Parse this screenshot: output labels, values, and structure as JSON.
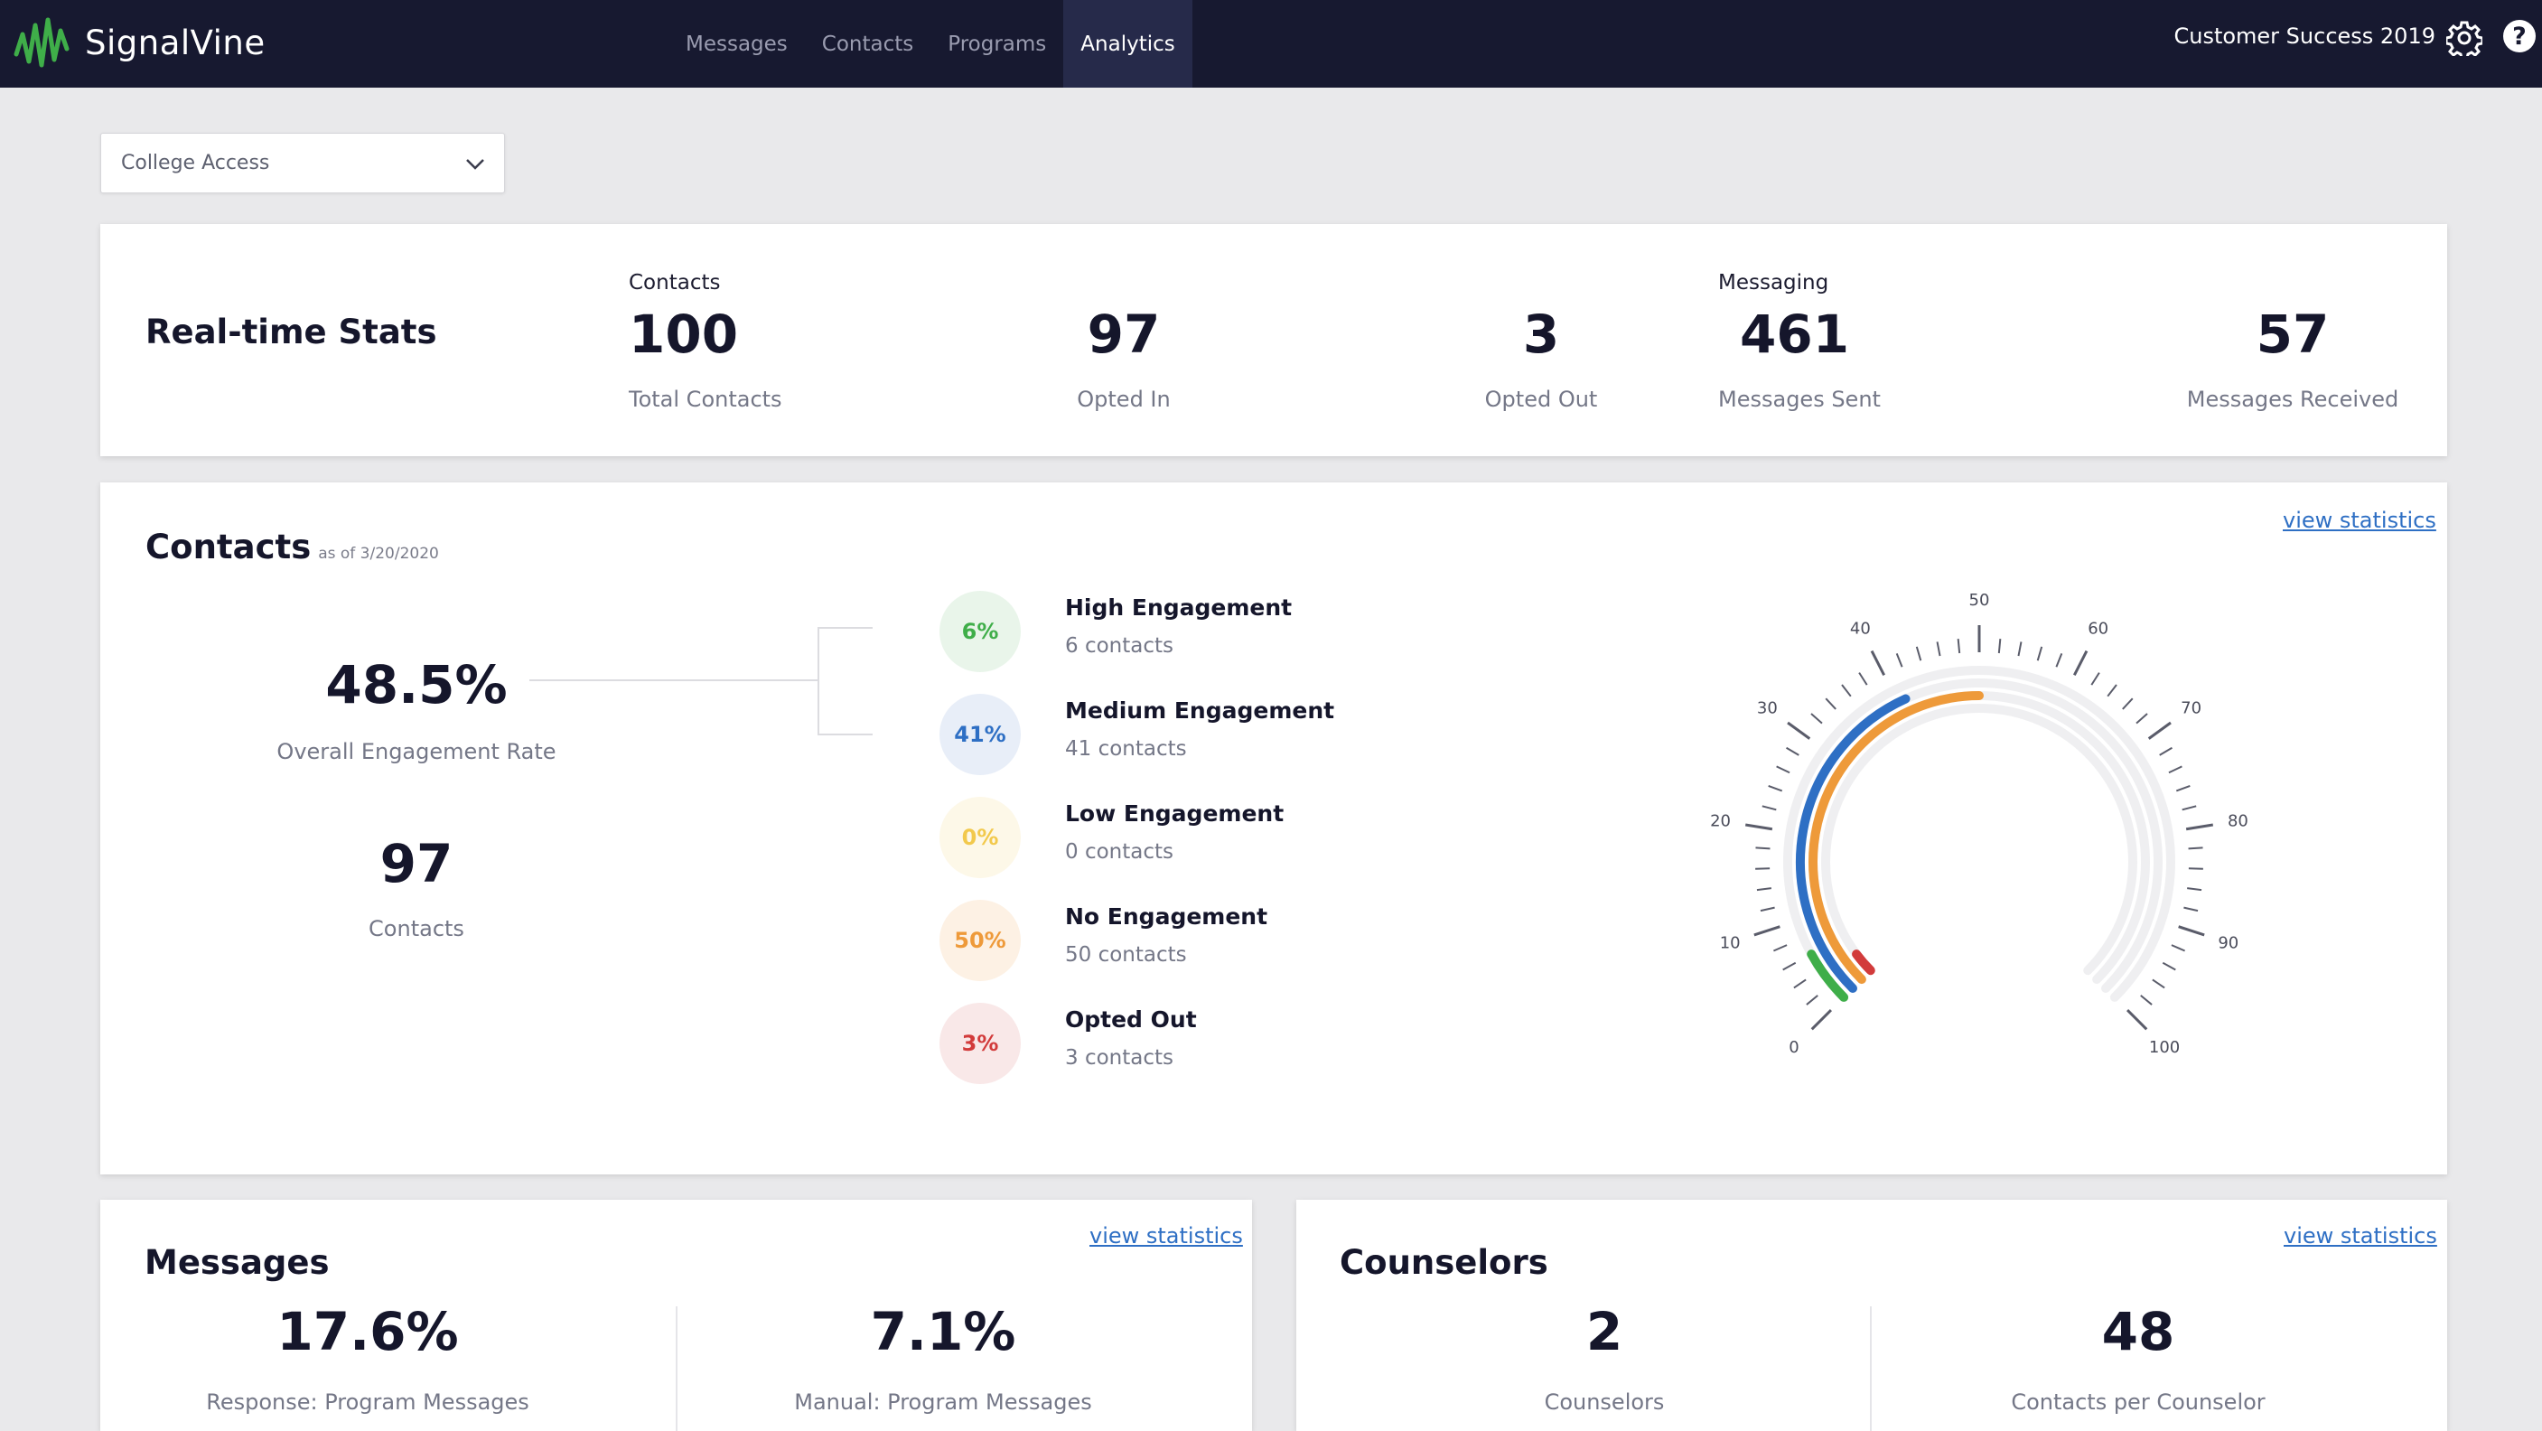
{
  "app": {
    "brand": "SignalVine",
    "nav": [
      {
        "label": "Messages",
        "active": false
      },
      {
        "label": "Contacts",
        "active": false
      },
      {
        "label": "Programs",
        "active": false
      },
      {
        "label": "Analytics",
        "active": true
      }
    ],
    "account_name": "Customer Success 2019",
    "help_glyph": "?"
  },
  "program_select": {
    "value": "College Access"
  },
  "realtime": {
    "title": "Real-time Stats",
    "contacts_group": "Contacts",
    "messaging_group": "Messaging",
    "stats": [
      {
        "value": "100",
        "label": "Total Contacts"
      },
      {
        "value": "97",
        "label": "Opted In"
      },
      {
        "value": "3",
        "label": "Opted Out"
      },
      {
        "value": "461",
        "label": "Messages Sent"
      },
      {
        "value": "57",
        "label": "Messages Received"
      }
    ]
  },
  "contacts": {
    "title": "Contacts",
    "as_of": "as of 3/20/2020",
    "view_statistics": "view statistics",
    "engagement_rate": {
      "value": "48.5%",
      "label": "Overall Engagement Rate"
    },
    "contact_count": {
      "value": "97",
      "label": "Contacts"
    },
    "engagement": [
      {
        "pct": "6%",
        "title": "High Engagement",
        "count": "6 contacts",
        "color": "#3fae49",
        "bg": "#e9f5ea"
      },
      {
        "pct": "41%",
        "title": "Medium Engagement",
        "count": "41 contacts",
        "color": "#2e6fc4",
        "bg": "#e8eef8"
      },
      {
        "pct": "0%",
        "title": "Low Engagement",
        "count": "0 contacts",
        "color": "#f2c94c",
        "bg": "#fdf8e8"
      },
      {
        "pct": "50%",
        "title": "No Engagement",
        "count": "50 contacts",
        "color": "#ee9a3a",
        "bg": "#fdf1e4"
      },
      {
        "pct": "3%",
        "title": "Opted Out",
        "count": "3 contacts",
        "color": "#d23b3b",
        "bg": "#f9e8e8"
      }
    ],
    "gauge": {
      "min": 0,
      "max": 100,
      "tick_labels": [
        "0",
        "10",
        "20",
        "30",
        "40",
        "50",
        "60",
        "70",
        "80",
        "90",
        "100"
      ],
      "arcs": [
        {
          "name": "High Engagement",
          "value": 6,
          "color": "#3fae49"
        },
        {
          "name": "Medium Engagement",
          "value": 41,
          "color": "#2e6fc4"
        },
        {
          "name": "No Engagement",
          "value": 50,
          "color": "#ee9a3a"
        },
        {
          "name": "Opted Out",
          "value": 3,
          "color": "#d23b3b"
        }
      ],
      "track_color": "#efeff1"
    }
  },
  "messages": {
    "title": "Messages",
    "view_statistics": "view statistics",
    "stats": [
      {
        "value": "17.6%",
        "label": "Response: Program Messages"
      },
      {
        "value": "7.1%",
        "label": "Manual: Program Messages"
      }
    ]
  },
  "counselors": {
    "title": "Counselors",
    "view_statistics": "view statistics",
    "stats": [
      {
        "value": "2",
        "label": "Counselors"
      },
      {
        "value": "48",
        "label": "Contacts per Counselor"
      }
    ]
  }
}
